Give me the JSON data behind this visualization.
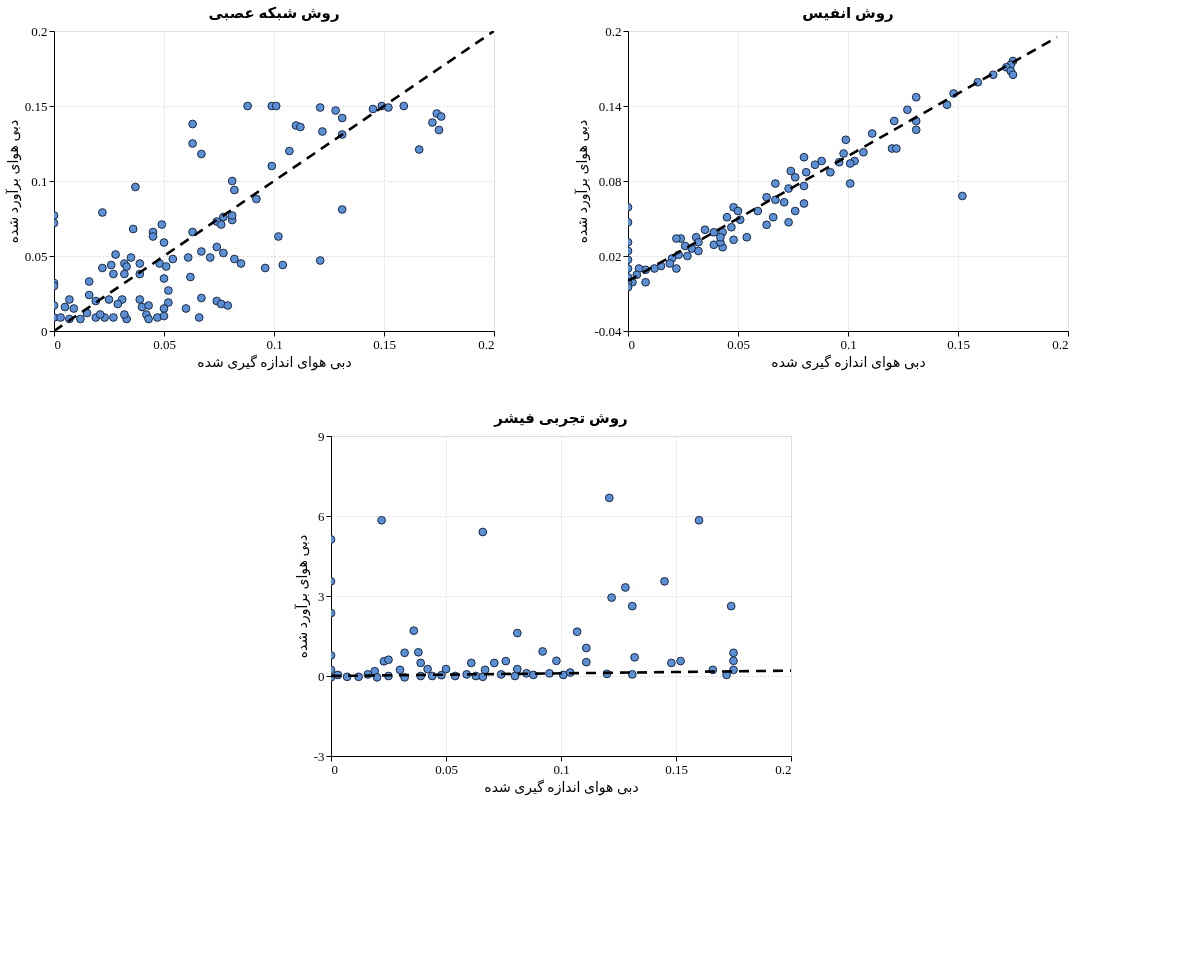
{
  "chart_data": [
    {
      "type": "scatter",
      "title": "روش شبکه عصبی",
      "xlabel": "دبی هوای اندازه گیری شده",
      "ylabel": "دبی هوای برآورد شده",
      "xlim": [
        0,
        0.2
      ],
      "ylim": [
        0,
        0.2
      ],
      "xticks": [
        0,
        0.05,
        0.1,
        0.15,
        0.2
      ],
      "yticks": [
        0,
        0.05,
        0.1,
        0.15,
        0.2
      ],
      "grid": true,
      "series": [
        {
          "marker": "circle",
          "color": "#5b8fd6",
          "x": [
            0.088,
            0.099,
            0.101,
            0.121,
            0.128,
            0.131,
            0.145,
            0.149,
            0.152,
            0.159,
            0.174,
            0.176,
            0.172,
            0.175,
            0.063,
            0.063,
            0.067,
            0.11,
            0.112,
            0.122,
            0.131,
            0.107,
            0.166,
            0.099,
            0.081,
            0.082,
            0.092,
            0.037,
            0.022,
            0.131,
            0,
            0,
            0.049,
            0.045,
            0.045,
            0.036,
            0.074,
            0.077,
            0.076,
            0.081,
            0.081,
            0.063,
            0.102,
            0.05,
            0.074,
            0.077,
            0.067,
            0.071,
            0.061,
            0.054,
            0.048,
            0.051,
            0.082,
            0.085,
            0.096,
            0.104,
            0.121,
            0.028,
            0.035,
            0.039,
            0.032,
            0.022,
            0.026,
            0.033,
            0.027,
            0.032,
            0.039,
            0.05,
            0.062,
            0.016,
            0,
            0,
            0.052,
            0.016,
            0.007,
            0.019,
            0.025,
            0.031,
            0.039,
            0.067,
            0.074,
            0,
            0.005,
            0.009,
            0.029,
            0.04,
            0.043,
            0.052,
            0.05,
            0.076,
            0.079,
            0.06,
            0,
            0.003,
            0.007,
            0.012,
            0.015,
            0.019,
            0.023,
            0.027,
            0.033,
            0.042,
            0.043,
            0.047,
            0.05,
            0.066,
            0.021,
            0.032
          ],
          "values": [
            0.15,
            0.15,
            0.15,
            0.149,
            0.147,
            0.142,
            0.148,
            0.15,
            0.149,
            0.15,
            0.145,
            0.143,
            0.139,
            0.134,
            0.138,
            0.125,
            0.118,
            0.137,
            0.136,
            0.133,
            0.131,
            0.12,
            0.121,
            0.11,
            0.1,
            0.094,
            0.088,
            0.096,
            0.079,
            0.081,
            0.077,
            0.072,
            0.071,
            0.066,
            0.063,
            0.068,
            0.073,
            0.076,
            0.071,
            0.074,
            0.077,
            0.066,
            0.063,
            0.059,
            0.056,
            0.052,
            0.053,
            0.049,
            0.049,
            0.048,
            0.045,
            0.043,
            0.048,
            0.045,
            0.042,
            0.044,
            0.047,
            0.051,
            0.049,
            0.045,
            0.045,
            0.042,
            0.044,
            0.043,
            0.038,
            0.038,
            0.038,
            0.035,
            0.036,
            0.033,
            0.032,
            0.03,
            0.027,
            0.024,
            0.021,
            0.02,
            0.021,
            0.021,
            0.021,
            0.022,
            0.02,
            0.017,
            0.016,
            0.015,
            0.018,
            0.016,
            0.017,
            0.019,
            0.015,
            0.018,
            0.017,
            0.015,
            0.009,
            0.009,
            0.008,
            0.008,
            0.012,
            0.009,
            0.009,
            0.009,
            0.008,
            0.011,
            0.008,
            0.009,
            0.01,
            0.009,
            0.011,
            0.011
          ]
        },
        {
          "type": "line",
          "marker": "none",
          "line_style": "dashed",
          "color": "#000000",
          "x": [
            0,
            0.2
          ],
          "values": [
            0,
            0.2
          ]
        }
      ]
    },
    {
      "type": "scatter",
      "title": "روش انفیس",
      "xlabel": "دبی هوای اندازه گیری شده",
      "ylabel": "دبی هوای برآورد شده",
      "xlim": [
        0,
        0.2
      ],
      "ylim": [
        -0.04,
        0.2
      ],
      "xticks": [
        0,
        0.05,
        0.1,
        0.15,
        0.2
      ],
      "yticks": [
        -0.04,
        0.02,
        0.08,
        0.14,
        0.2
      ],
      "grid": true,
      "series": [
        {
          "marker": "circle",
          "color": "#5b8fd6",
          "x": [
            0.175,
            0.174,
            0.172,
            0.174,
            0.175,
            0.166,
            0.159,
            0.148,
            0.145,
            0.131,
            0.127,
            0.131,
            0.131,
            0.121,
            0.111,
            0.12,
            0.122,
            0.099,
            0.098,
            0.107,
            0.103,
            0.101,
            0.101,
            0.096,
            0.092,
            0.088,
            0.085,
            0.08,
            0.081,
            0.074,
            0.076,
            0.073,
            0.08,
            0.08,
            0.067,
            0.067,
            0.071,
            0.063,
            0.076,
            0.066,
            0.073,
            0.063,
            0.059,
            0.152,
            0.048,
            0.05,
            0.045,
            0.051,
            0.047,
            0.048,
            0.054,
            0.035,
            0.039,
            0.043,
            0.039,
            0.043,
            0.042,
            0.042,
            0.031,
            0.032,
            0.029,
            0.032,
            0.024,
            0.022,
            0.026,
            0.027,
            0.023,
            0.02,
            0.022,
            0.019,
            0.015,
            0.012,
            0.008,
            0.005,
            0.008,
            0.004,
            0.002,
            0,
            0,
            0,
            0,
            0,
            0,
            0,
            0,
            0
          ],
          "values": [
            0.176,
            0.173,
            0.171,
            0.168,
            0.165,
            0.165,
            0.159,
            0.15,
            0.141,
            0.147,
            0.137,
            0.128,
            0.121,
            0.128,
            0.118,
            0.106,
            0.106,
            0.113,
            0.102,
            0.103,
            0.096,
            0.094,
            0.078,
            0.095,
            0.087,
            0.096,
            0.093,
            0.099,
            0.087,
            0.088,
            0.083,
            0.074,
            0.076,
            0.062,
            0.078,
            0.065,
            0.063,
            0.067,
            0.056,
            0.051,
            0.047,
            0.045,
            0.056,
            0.068,
            0.059,
            0.056,
            0.051,
            0.049,
            0.043,
            0.033,
            0.035,
            0.041,
            0.039,
            0.039,
            0.029,
            0.027,
            0.031,
            0.035,
            0.035,
            0.031,
            0.026,
            0.024,
            0.034,
            0.034,
            0.028,
            0.02,
            0.021,
            0.018,
            0.01,
            0.014,
            0.012,
            0.01,
            0.009,
            0.01,
            -0.001,
            0.005,
            -0.001,
            0.059,
            0.047,
            0.031,
            0.024,
            0.017,
            0.01,
            0.003,
            -0.001,
            -0.005
          ]
        },
        {
          "type": "line",
          "marker": "none",
          "line_style": "dashed",
          "color": "#000000",
          "x": [
            0,
            0.195
          ],
          "values": [
            0,
            0.195
          ]
        }
      ]
    },
    {
      "type": "scatter",
      "title": "روش تجربی فیشر",
      "xlabel": "دبی هوای اندازه گیری شده",
      "ylabel": "دبی هوای برآورد شده",
      "xlim": [
        0,
        0.2
      ],
      "ylim": [
        -3,
        9
      ],
      "xticks": [
        0,
        0.05,
        0.1,
        0.15,
        0.2
      ],
      "yticks": [
        -3,
        0,
        3,
        6,
        9
      ],
      "grid": true,
      "series": [
        {
          "marker": "circle",
          "color": "#5b8fd6",
          "x": [
            0.022,
            0.066,
            0.121,
            0.16,
            0,
            0,
            0,
            0,
            0,
            0,
            0.122,
            0.128,
            0.131,
            0.145,
            0.174,
            0.036,
            0.081,
            0.107,
            0.111,
            0.111,
            0.032,
            0.038,
            0.092,
            0.132,
            0.175,
            0.175,
            0.023,
            0.025,
            0.039,
            0.061,
            0.071,
            0.076,
            0.098,
            0.148,
            0.152,
            0.166,
            0.175,
            0.067,
            0.081,
            0.042,
            0.05,
            0.03,
            0.019,
            0.003,
            0.007,
            0.012,
            0.016,
            0.02,
            0.025,
            0.032,
            0.039,
            0.044,
            0.048,
            0.054,
            0.059,
            0.063,
            0.066,
            0.074,
            0.08,
            0.085,
            0.088,
            0.095,
            0.101,
            0.104,
            0.12,
            0.131,
            0.172
          ],
          "values": [
            5.84,
            5.4,
            6.68,
            5.84,
            5.12,
            3.55,
            2.36,
            0.77,
            0.23,
            -0.05,
            2.94,
            3.32,
            2.62,
            3.55,
            2.62,
            1.7,
            1.61,
            1.66,
            1.05,
            0.52,
            0.87,
            0.89,
            0.92,
            0.7,
            0.87,
            0.57,
            0.55,
            0.61,
            0.49,
            0.49,
            0.49,
            0.56,
            0.57,
            0.49,
            0.56,
            0.23,
            0.23,
            0.23,
            0.26,
            0.26,
            0.26,
            0.23,
            0.18,
            0.04,
            -0.03,
            -0.03,
            0.06,
            -0.05,
            0,
            -0.05,
            0,
            0,
            0.03,
            0,
            0.06,
            0,
            -0.03,
            0.06,
            0,
            0.1,
            0.04,
            0.1,
            0.04,
            0.13,
            0.08,
            0.06,
            0.04
          ]
        },
        {
          "type": "line",
          "marker": "none",
          "line_style": "dashed",
          "color": "#000000",
          "x": [
            0,
            0.2
          ],
          "values": [
            0,
            0.2
          ]
        }
      ]
    }
  ]
}
